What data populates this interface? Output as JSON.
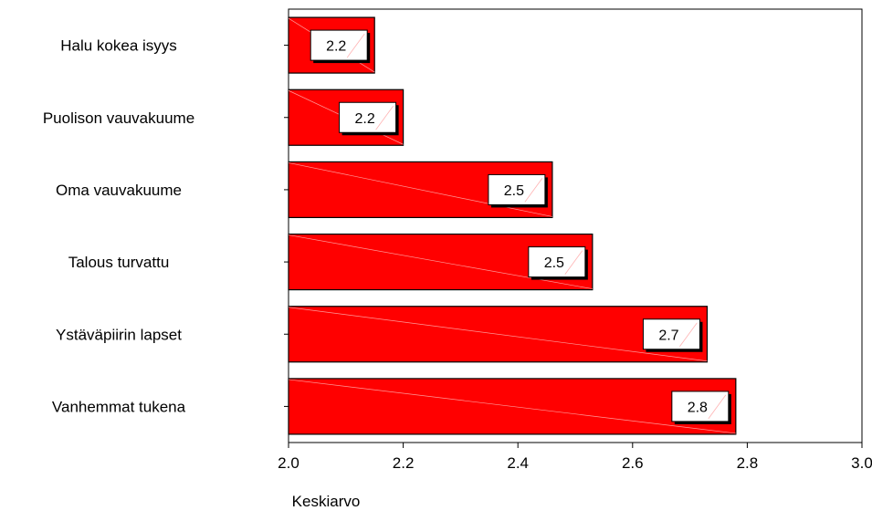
{
  "chart_data": {
    "type": "bar",
    "orientation": "horizontal",
    "categories": [
      "Halu kokea isyys",
      "Puolison vauvakuume",
      "Oma vauvakuume",
      "Talous turvattu",
      "Ystäväpiirin lapset",
      "Vanhemmat tukena"
    ],
    "values": [
      2.15,
      2.2,
      2.46,
      2.53,
      2.73,
      2.78
    ],
    "data_labels": [
      "2.2",
      "2.2",
      "2.5",
      "2.5",
      "2.7",
      "2.8"
    ],
    "xlabel": "Keskiarvo",
    "ylabel": "",
    "xlim": [
      2.0,
      3.0
    ],
    "xticks": [
      2.0,
      2.2,
      2.4,
      2.6,
      2.8,
      3.0
    ],
    "xtick_labels": [
      "2.0",
      "2.2",
      "2.4",
      "2.6",
      "2.8",
      "3.0"
    ],
    "grid": false,
    "bar_color": "#ff0000",
    "bar_edge_color": "#000000"
  }
}
